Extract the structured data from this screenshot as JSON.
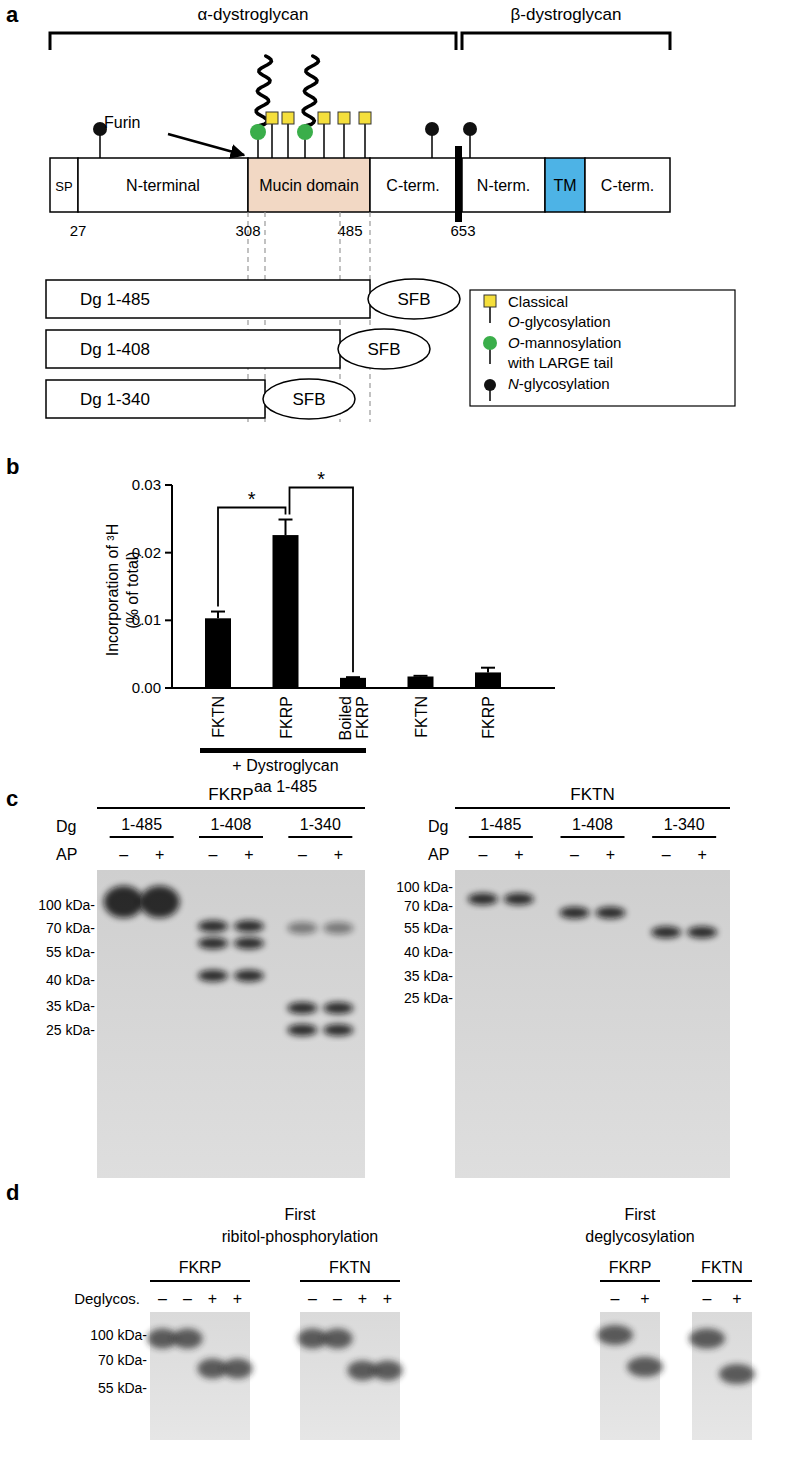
{
  "panel_labels": [
    "a",
    "b",
    "c",
    "d"
  ],
  "panel_a": {
    "brackets": [
      "α-dystroglycan",
      "β-dystroglycan"
    ],
    "domains": [
      "SP",
      "N-terminal",
      "Mucin domain",
      "C-term.",
      "N-term.",
      "TM",
      "C-term."
    ],
    "residues": [
      27,
      308,
      485,
      653
    ],
    "protease": "Furin",
    "constructs": [
      {
        "label": "Dg 1-485",
        "tag": "SFB"
      },
      {
        "label": "Dg 1-408",
        "tag": "SFB"
      },
      {
        "label": "Dg 1-340",
        "tag": "SFB"
      }
    ],
    "legend": [
      {
        "lines": [
          "Classical",
          "O-glycosylation"
        ]
      },
      {
        "lines": [
          "O-mannosylation",
          "with LARGE tail"
        ]
      },
      {
        "lines": [
          "N-glycosylation"
        ]
      }
    ]
  },
  "chart_data": {
    "type": "bar",
    "categories": [
      "FKTN",
      "FKRP",
      "Boiled FKRP",
      "FKTN",
      "FKRP"
    ],
    "values": [
      0.0103,
      0.0226,
      0.0015,
      0.0017,
      0.0023
    ],
    "errors": [
      0.001,
      0.0023,
      0.0001,
      0.0001,
      0.0007
    ],
    "color": "#000000",
    "ylim": [
      0,
      0.03
    ],
    "yticks": [
      {
        "value": 0,
        "label": "0.00"
      },
      {
        "value": 0.01,
        "label": "0.01"
      },
      {
        "value": 0.02,
        "label": "0.02"
      },
      {
        "value": 0.03,
        "label": "0.03"
      }
    ],
    "y_label": [
      "Incorporation of ³H",
      "(% of total)"
    ],
    "group": {
      "label": [
        "+ Dystroglycan",
        "aa 1-485"
      ],
      "categories": [
        0,
        1,
        2
      ]
    },
    "annotations": [
      {
        "text": "*",
        "between": [
          0,
          1
        ]
      },
      {
        "text": "*",
        "between": [
          1,
          2
        ]
      }
    ]
  },
  "panel_c": {
    "row_labels": [
      "Dg",
      "AP"
    ],
    "blots": [
      {
        "title": "FKRP",
        "markers": [
          {
            "value": 100,
            "label": "100 kDa-"
          },
          {
            "value": 70,
            "label": "70 kDa-"
          },
          {
            "value": 55,
            "label": "55 kDa-"
          },
          {
            "value": 40,
            "label": "40 kDa-"
          },
          {
            "value": 35,
            "label": "35 kDa-"
          },
          {
            "value": 25,
            "label": "25 kDa-"
          }
        ],
        "groups": [
          {
            "label": "1-485",
            "lanes": [
              {
                "label": "–",
                "bands_kda": [
                  105
                ]
              },
              {
                "label": "+",
                "bands_kda": [
                  105
                ]
              }
            ]
          },
          {
            "label": "1-408",
            "lanes": [
              {
                "label": "–",
                "bands_kda": [
                  72,
                  60,
                  42
                ]
              },
              {
                "label": "+",
                "bands_kda": [
                  72,
                  60,
                  42
                ]
              }
            ]
          },
          {
            "label": "1-340",
            "lanes": [
              {
                "label": "–",
                "bands_kda": [
                  70,
                  34,
                  25
                ]
              },
              {
                "label": "+",
                "bands_kda": [
                  70,
                  34,
                  25
                ]
              }
            ]
          }
        ]
      },
      {
        "title": "FKTN",
        "markers": [
          {
            "value": 100,
            "label": "100 kDa-"
          },
          {
            "value": 70,
            "label": "70 kDa-"
          },
          {
            "value": 55,
            "label": "55 kDa-"
          },
          {
            "value": 40,
            "label": "40 kDa-"
          },
          {
            "value": 35,
            "label": "35 kDa-"
          },
          {
            "value": 25,
            "label": "25 kDa-"
          }
        ],
        "groups": [
          {
            "label": "1-485",
            "lanes": [
              {
                "label": "–",
                "bands_kda": [
                  80
                ]
              },
              {
                "label": "+",
                "bands_kda": [
                  80
                ]
              }
            ]
          },
          {
            "label": "1-408",
            "lanes": [
              {
                "label": "–",
                "bands_kda": [
                  65
                ]
              },
              {
                "label": "+",
                "bands_kda": [
                  65
                ]
              }
            ]
          },
          {
            "label": "1-340",
            "lanes": [
              {
                "label": "–",
                "bands_kda": [
                  52
                ]
              },
              {
                "label": "+",
                "bands_kda": [
                  52
                ]
              }
            ]
          }
        ]
      }
    ]
  },
  "panel_d": {
    "row_label": "Deglycos.",
    "markers": [
      {
        "value": 100,
        "label": "100 kDa-"
      },
      {
        "value": 70,
        "label": "70 kDa-"
      },
      {
        "value": 55,
        "label": "55 kDa-"
      }
    ],
    "sections": [
      {
        "title": [
          "First",
          "ribitol-phosphorylation"
        ],
        "blots": [
          {
            "title": "FKRP",
            "lanes": [
              {
                "label": "–",
                "bands_kda": [
                  95
                ]
              },
              {
                "label": "–",
                "bands_kda": [
                  95
                ]
              },
              {
                "label": "+",
                "bands_kda": [
                  65
                ]
              },
              {
                "label": "+",
                "bands_kda": [
                  65
                ]
              }
            ]
          },
          {
            "title": "FKTN",
            "lanes": [
              {
                "label": "–",
                "bands_kda": [
                  95
                ]
              },
              {
                "label": "–",
                "bands_kda": [
                  95
                ]
              },
              {
                "label": "+",
                "bands_kda": [
                  64
                ]
              },
              {
                "label": "+",
                "bands_kda": [
                  64
                ]
              }
            ]
          }
        ]
      },
      {
        "title": [
          "First",
          "deglycosylation"
        ],
        "blots": [
          {
            "title": "FKRP",
            "lanes": [
              {
                "label": "–",
                "bands_kda": [
                  100
                ]
              },
              {
                "label": "+",
                "bands_kda": [
                  66
                ]
              }
            ]
          },
          {
            "title": "FKTN",
            "lanes": [
              {
                "label": "–",
                "bands_kda": [
                  95
                ]
              },
              {
                "label": "+",
                "bands_kda": [
                  62
                ]
              }
            ]
          }
        ]
      }
    ]
  }
}
